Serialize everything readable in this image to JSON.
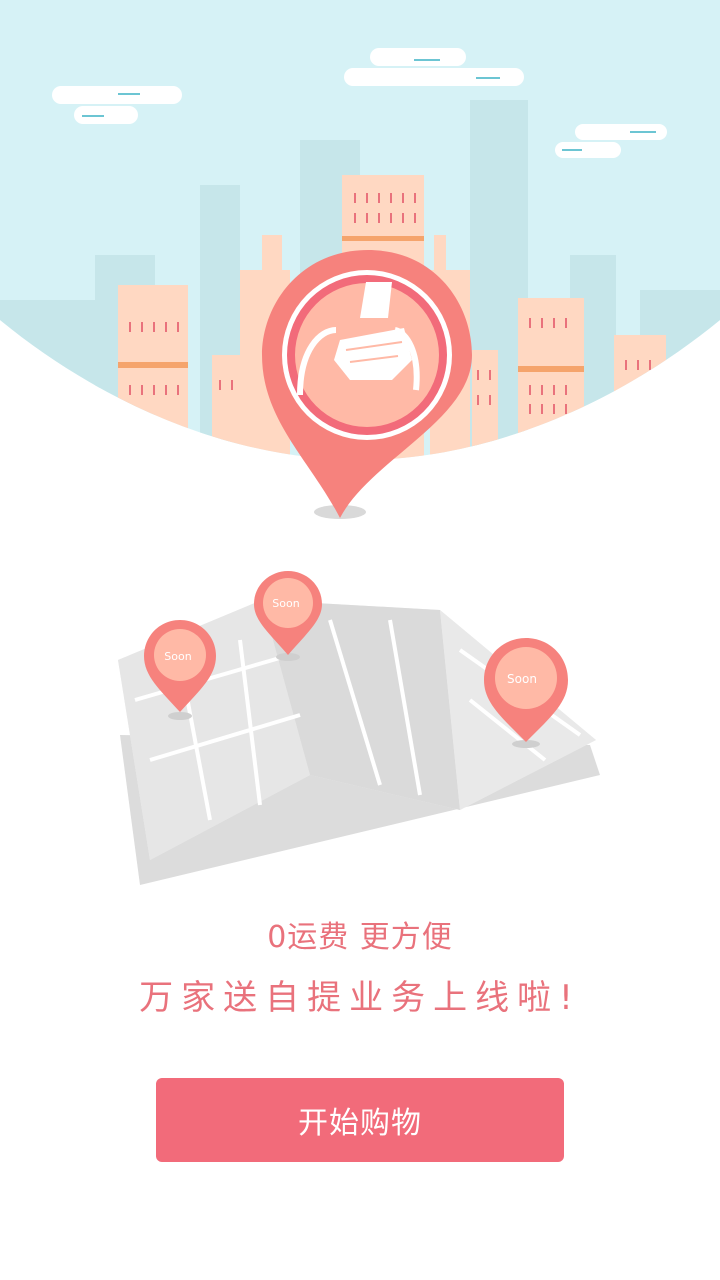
{
  "intro": {
    "badge_text": "Soon",
    "tagline": "0运费 更方便",
    "headline": "万家送自提业务上线啦!",
    "cta_label": "开始购物"
  },
  "icons": [
    "cloud-icon",
    "city-skyline",
    "location-pin-icon",
    "hand-bag-icon",
    "folded-map",
    "soon-pin-icon"
  ],
  "colors": {
    "accent": "#f26b7a",
    "text_accent": "#e9727c",
    "sky": "#d9f3f6",
    "building": "#ffd9c3",
    "pin": "#f7837f",
    "map": "#e9e9e9"
  }
}
